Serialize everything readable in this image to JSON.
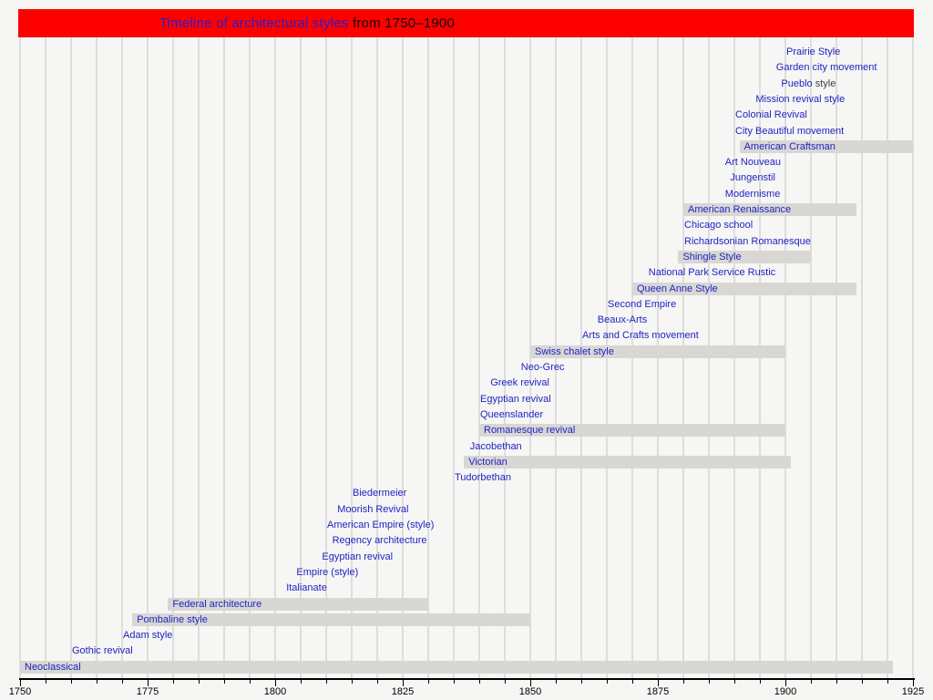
{
  "header": {
    "linked_text": "Timeline of architectural styles",
    "plain_text": " from 1750–1900"
  },
  "colors": {
    "header_bg": "#fe0000",
    "link_blue": "#2222c4",
    "bar_fill": "#d8d7d4",
    "background": "#f6f6f4",
    "gridline": "#dedddb",
    "axis": "#000000"
  },
  "chart_data": {
    "type": "bar",
    "variant": "gantt-timeline",
    "title": "Timeline of architectural styles from 1750–1900",
    "x_axis": {
      "min": 1750,
      "max": 1925,
      "gridline_interval_years": 5,
      "label_interval_years": 25,
      "tick_labels": [
        "1750",
        "1775",
        "1800",
        "1825",
        "1850",
        "1875",
        "1900",
        "1925"
      ]
    },
    "legend": "gray bar = duration of style; text-only entry = start year of style",
    "items": [
      {
        "label": "Prairie Style",
        "kind": "point",
        "start": 1900
      },
      {
        "label": "Garden city movement",
        "kind": "point",
        "start": 1898
      },
      {
        "label": "Pueblo",
        "suffix": " style",
        "kind": "point",
        "start": 1899
      },
      {
        "label": "Mission revival style",
        "kind": "point",
        "start": 1894
      },
      {
        "label": "Colonial Revival",
        "kind": "point",
        "start": 1890
      },
      {
        "label": "City Beautiful movement",
        "kind": "point",
        "start": 1890
      },
      {
        "label": "American Craftsman",
        "kind": "bar",
        "start": 1891,
        "end": 1925
      },
      {
        "label": "Art Nouveau",
        "kind": "point",
        "start": 1888
      },
      {
        "label": "Jungenstil",
        "kind": "point",
        "start": 1889
      },
      {
        "label": "Modernisme",
        "kind": "point",
        "start": 1888
      },
      {
        "label": "American Renaissance",
        "kind": "bar",
        "start": 1880,
        "end": 1914
      },
      {
        "label": "Chicago school",
        "kind": "point",
        "start": 1880
      },
      {
        "label": "Richardsonian Romanesque",
        "kind": "point",
        "start": 1880
      },
      {
        "label": "Shingle Style",
        "kind": "bar",
        "start": 1879,
        "end": 1905
      },
      {
        "label": "National Park Service Rustic",
        "kind": "point",
        "start": 1873
      },
      {
        "label": "Queen Anne Style",
        "kind": "bar",
        "start": 1870,
        "end": 1914
      },
      {
        "label": "Second Empire",
        "kind": "point",
        "start": 1865
      },
      {
        "label": "Beaux-Arts",
        "kind": "point",
        "start": 1863
      },
      {
        "label": "Arts and Crafts movement",
        "kind": "point",
        "start": 1860
      },
      {
        "label": "Swiss chalet style",
        "kind": "bar",
        "start": 1850,
        "end": 1900
      },
      {
        "label": "Neo-Grec",
        "kind": "point",
        "start": 1848
      },
      {
        "label": "Greek revival",
        "kind": "point",
        "start": 1842
      },
      {
        "label": "Egyptian revival",
        "kind": "point",
        "start": 1840
      },
      {
        "label": "Queenslander",
        "kind": "point",
        "start": 1840
      },
      {
        "label": "Romanesque revival",
        "kind": "bar",
        "start": 1840,
        "end": 1900
      },
      {
        "label": "Jacobethan",
        "kind": "point",
        "start": 1838
      },
      {
        "label": "Victorian",
        "kind": "bar",
        "start": 1837,
        "end": 1901
      },
      {
        "label": "Tudorbethan",
        "kind": "point",
        "start": 1835
      },
      {
        "label": "Biedermeier",
        "kind": "point",
        "start": 1815
      },
      {
        "label": "Moorish Revival",
        "kind": "point",
        "start": 1812
      },
      {
        "label": "American Empire (style)",
        "kind": "point",
        "start": 1810
      },
      {
        "label": "Regency architecture",
        "kind": "point",
        "start": 1811
      },
      {
        "label": "Egyptian revival",
        "kind": "point",
        "start": 1809
      },
      {
        "label": "Empire (style)",
        "kind": "point",
        "start": 1804
      },
      {
        "label": "Italianate",
        "kind": "point",
        "start": 1802
      },
      {
        "label": "Federal architecture",
        "kind": "bar",
        "start": 1779,
        "end": 1830
      },
      {
        "label": "Pombaline style",
        "kind": "bar",
        "start": 1772,
        "end": 1850
      },
      {
        "label": "Adam style",
        "kind": "point",
        "start": 1770
      },
      {
        "label": "Gothic revival",
        "kind": "point",
        "start": 1760
      },
      {
        "label": "Neoclassical",
        "kind": "bar",
        "start": 1750,
        "end": 1921
      }
    ]
  }
}
